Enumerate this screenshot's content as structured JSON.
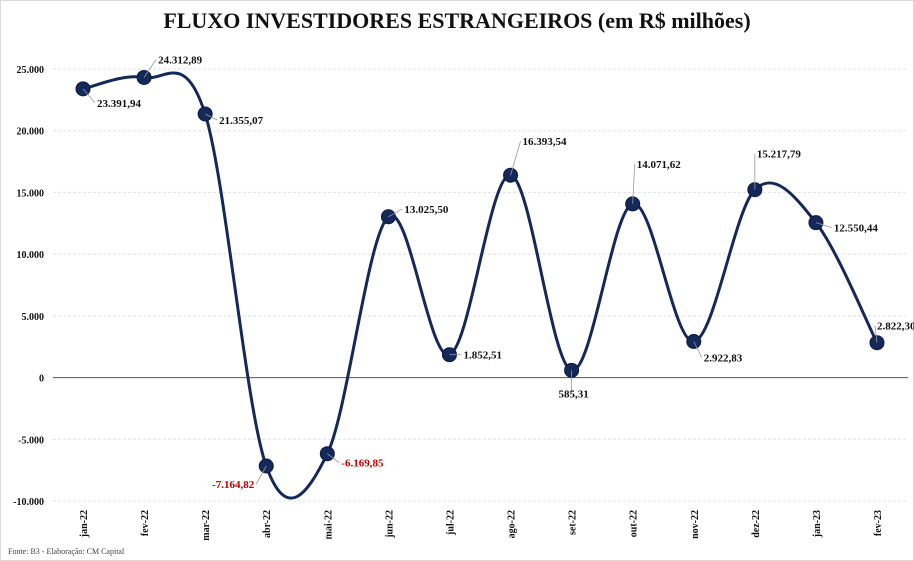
{
  "chart_data": {
    "type": "line",
    "title": "FLUXO INVESTIDORES ESTRANGEIROS (em R$ milhões)",
    "source": "Fonte: B3 - Elaboração: CM Capital",
    "categories": [
      "jan-22",
      "fev-22",
      "mar-22",
      "abr-22",
      "mai-22",
      "jun-22",
      "jul-22",
      "ago-22",
      "set-22",
      "out-22",
      "nov-22",
      "dez-22",
      "jan-23",
      "fev-23"
    ],
    "series": [
      {
        "values": [
          23391.94,
          24312.89,
          21355.07,
          -7164.82,
          -6169.85,
          13025.5,
          1852.51,
          16393.54,
          585.31,
          14071.62,
          2922.83,
          15217.79,
          12550.44,
          2822.3
        ],
        "labels": [
          "23.391,94",
          "24.312,89",
          "21.355,07",
          "-7.164,82",
          "-6.169,85",
          "13.025,50",
          "1.852,51",
          "16.393,54",
          "585,31",
          "14.071,62",
          "2.922,83",
          "15.217,79",
          "12.550,44",
          "2.822,30"
        ]
      }
    ],
    "yticks": [
      25000,
      20000,
      15000,
      10000,
      5000,
      0,
      -5000,
      -10000
    ],
    "ytick_labels": [
      "25.000",
      "20.000",
      "15.000",
      "10.000",
      "5.000",
      "0",
      "-5.000",
      "-10.000"
    ],
    "ylim": [
      -10000,
      25000
    ],
    "grid": true,
    "colors": {
      "line": "#14285a",
      "marker": "#14285a",
      "negative_label": "#c00000",
      "grid": "#e0e0e0"
    }
  }
}
